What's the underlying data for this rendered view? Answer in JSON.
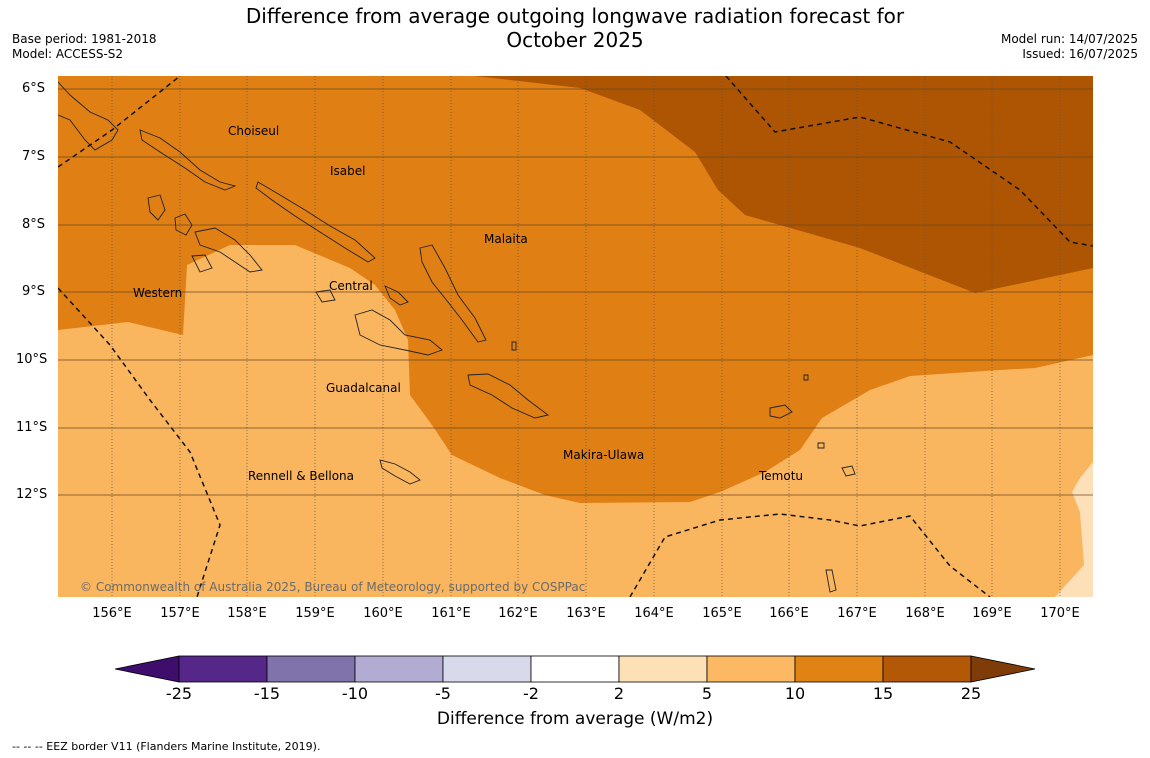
{
  "header": {
    "title_line1": "Difference from average outgoing longwave radiation forecast for",
    "title_line2": "October 2025",
    "base_period": "Base period: 1981-2018",
    "model": "Model: ACCESS-S2",
    "model_run": "Model run: 14/07/2025",
    "issued": "Issued: 16/07/2025"
  },
  "map": {
    "lat_labels": [
      "6°S",
      "7°S",
      "8°S",
      "9°S",
      "10°S",
      "11°S",
      "12°S"
    ],
    "lon_labels": [
      "156°E",
      "157°E",
      "158°E",
      "159°E",
      "160°E",
      "161°E",
      "162°E",
      "163°E",
      "164°E",
      "165°E",
      "166°E",
      "167°E",
      "168°E",
      "169°E",
      "170°E"
    ],
    "regions": [
      {
        "name": "Choiseul"
      },
      {
        "name": "Isabel"
      },
      {
        "name": "Malaita"
      },
      {
        "name": "Western"
      },
      {
        "name": "Central"
      },
      {
        "name": "Guadalcanal"
      },
      {
        "name": "Makira-Ulawa"
      },
      {
        "name": "Rennell & Bellona"
      },
      {
        "name": "Temotu"
      }
    ],
    "copyright": "© Commonwealth of Australia 2025, Bureau of Meteorology, supported by COSPPac",
    "colors": {
      "light": "#fab55f",
      "mid": "#e07f14",
      "dark": "#ad5503",
      "palest": "#fde0b8"
    }
  },
  "colorbar": {
    "ticks": [
      "-25",
      "-15",
      "-10",
      "-5",
      "-2",
      "2",
      "5",
      "10",
      "15",
      "25"
    ],
    "colors": [
      "#3f0d6c",
      "#542788",
      "#8073ac",
      "#b2abd2",
      "#d8daeb",
      "#ffffff",
      "#fee0b6",
      "#fdb863",
      "#e08214",
      "#b35806",
      "#7f3b08"
    ],
    "caption": "Difference from average (W/m2)"
  },
  "footer": {
    "legend": "--  --  -- EEZ border V11 (Flanders Marine Institute, 2019)."
  }
}
